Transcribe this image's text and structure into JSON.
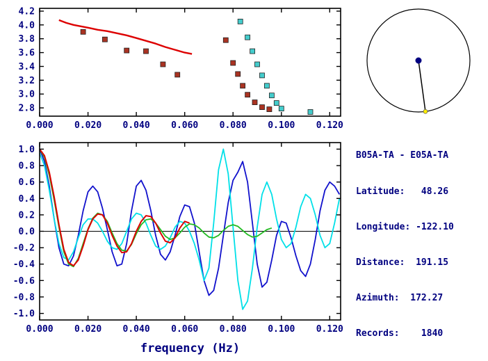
{
  "info_panel": {
    "station_pair": "B05A-TA - E05A-TA",
    "rows": [
      "Latitude:   48.26",
      "Longitude: -122.10",
      "Distance:  191.15",
      "Azimuth:  172.27",
      "Records:    1840"
    ]
  },
  "azimuth_indicator": {
    "azimuth_deg": 172.27,
    "circle_color": "#000000",
    "line_color": "#000000",
    "center_dot_color": "#000080",
    "end_dot_color": "#ffee00"
  },
  "colors": {
    "axis_text": "#000080",
    "frame": "#000000"
  },
  "chart_data": [
    {
      "type": "scatter",
      "title": "",
      "xlabel": "",
      "ylabel": "",
      "xlim": [
        0.0,
        0.1245
      ],
      "ylim": [
        2.68,
        4.24
      ],
      "xticks": [
        0.0,
        0.02,
        0.04,
        0.06,
        0.08,
        0.1,
        0.12
      ],
      "yticks": [
        2.8,
        3.0,
        3.2,
        3.4,
        3.6,
        3.8,
        4.0,
        4.2
      ],
      "xtick_decimals": 3,
      "ytick_decimals": 1,
      "zero_line": false,
      "series": [
        {
          "name": "reference-dispersion-curve",
          "type": "line",
          "color": "#dd0000",
          "width": 2.4,
          "points": [
            [
              0.008,
              4.07
            ],
            [
              0.011,
              4.03
            ],
            [
              0.014,
              4.0
            ],
            [
              0.017,
              3.98
            ],
            [
              0.02,
              3.96
            ],
            [
              0.024,
              3.93
            ],
            [
              0.028,
              3.91
            ],
            [
              0.032,
              3.88
            ],
            [
              0.036,
              3.85
            ],
            [
              0.04,
              3.81
            ],
            [
              0.044,
              3.77
            ],
            [
              0.048,
              3.73
            ],
            [
              0.052,
              3.68
            ],
            [
              0.056,
              3.64
            ],
            [
              0.06,
              3.6
            ],
            [
              0.063,
              3.58
            ]
          ]
        },
        {
          "name": "measured-dispersion-red-markers",
          "type": "markers",
          "color": "#aa3322",
          "points": [
            [
              0.018,
              3.9
            ],
            [
              0.027,
              3.79
            ],
            [
              0.036,
              3.63
            ],
            [
              0.044,
              3.62
            ],
            [
              0.051,
              3.43
            ],
            [
              0.057,
              3.28
            ],
            [
              0.077,
              3.78
            ],
            [
              0.08,
              3.45
            ],
            [
              0.082,
              3.29
            ],
            [
              0.084,
              3.12
            ],
            [
              0.086,
              2.99
            ],
            [
              0.089,
              2.88
            ],
            [
              0.092,
              2.81
            ],
            [
              0.095,
              2.78
            ]
          ]
        },
        {
          "name": "measured-dispersion-cyan-markers",
          "type": "markers",
          "color": "#44cccc",
          "points": [
            [
              0.083,
              4.05
            ],
            [
              0.086,
              3.82
            ],
            [
              0.088,
              3.62
            ],
            [
              0.09,
              3.43
            ],
            [
              0.092,
              3.27
            ],
            [
              0.094,
              3.12
            ],
            [
              0.096,
              2.98
            ],
            [
              0.098,
              2.87
            ],
            [
              0.1,
              2.79
            ],
            [
              0.112,
              2.74
            ]
          ]
        }
      ]
    },
    {
      "type": "line",
      "title": "",
      "xlabel": "frequency (Hz)",
      "ylabel": "",
      "xlim": [
        0.0,
        0.1245
      ],
      "ylim": [
        -1.08,
        1.08
      ],
      "xticks": [
        0.0,
        0.02,
        0.04,
        0.06,
        0.08,
        0.1,
        0.12
      ],
      "yticks": [
        -1.0,
        -0.8,
        -0.6,
        -0.4,
        -0.2,
        0.0,
        0.2,
        0.4,
        0.6,
        0.8,
        1.0
      ],
      "xtick_decimals": 3,
      "ytick_decimals": 1,
      "zero_line": true,
      "series": [
        {
          "name": "blue-waveform",
          "type": "line",
          "color": "#1111cc",
          "width": 1.8,
          "x_start": 0.0,
          "x_step": 0.002,
          "y": [
            1.0,
            0.85,
            0.55,
            0.15,
            -0.2,
            -0.4,
            -0.42,
            -0.3,
            -0.05,
            0.25,
            0.48,
            0.55,
            0.48,
            0.28,
            0.02,
            -0.25,
            -0.42,
            -0.4,
            -0.15,
            0.25,
            0.55,
            0.62,
            0.5,
            0.25,
            -0.05,
            -0.28,
            -0.35,
            -0.25,
            -0.05,
            0.18,
            0.32,
            0.3,
            0.1,
            -0.25,
            -0.6,
            -0.78,
            -0.72,
            -0.45,
            -0.05,
            0.35,
            0.62,
            0.72,
            0.85,
            0.6,
            0.1,
            -0.4,
            -0.68,
            -0.62,
            -0.35,
            -0.05,
            0.12,
            0.1,
            -0.08,
            -0.3,
            -0.48,
            -0.55,
            -0.4,
            -0.1,
            0.25,
            0.5,
            0.6,
            0.55,
            0.45
          ]
        },
        {
          "name": "cyan-waveform",
          "type": "line",
          "color": "#00e0e8",
          "width": 1.8,
          "x_start": 0.0,
          "x_step": 0.002,
          "y": [
            0.95,
            0.8,
            0.5,
            0.15,
            -0.15,
            -0.32,
            -0.35,
            -0.25,
            -0.08,
            0.08,
            0.15,
            0.15,
            0.1,
            0.0,
            -0.12,
            -0.2,
            -0.22,
            -0.15,
            0.0,
            0.15,
            0.22,
            0.2,
            0.1,
            -0.05,
            -0.18,
            -0.22,
            -0.18,
            -0.08,
            0.05,
            0.12,
            0.1,
            0.0,
            -0.15,
            -0.35,
            -0.6,
            -0.45,
            0.1,
            0.75,
            1.0,
            0.7,
            0.05,
            -0.6,
            -0.95,
            -0.85,
            -0.45,
            0.05,
            0.45,
            0.6,
            0.45,
            0.15,
            -0.1,
            -0.2,
            -0.15,
            0.05,
            0.3,
            0.45,
            0.4,
            0.2,
            -0.05,
            -0.2,
            -0.15,
            0.1,
            0.4
          ]
        },
        {
          "name": "green-waveform",
          "type": "line",
          "color": "#22bb22",
          "width": 1.8,
          "x_start": 0.0,
          "x_step": 0.002,
          "y": [
            1.0,
            0.9,
            0.68,
            0.38,
            0.05,
            -0.25,
            -0.4,
            -0.43,
            -0.33,
            -0.15,
            0.03,
            0.16,
            0.22,
            0.2,
            0.12,
            -0.02,
            -0.15,
            -0.23,
            -0.24,
            -0.16,
            -0.03,
            0.08,
            0.14,
            0.15,
            0.1,
            0.02,
            -0.06,
            -0.1,
            -0.08,
            -0.02,
            0.05,
            0.09,
            0.08,
            0.04,
            -0.02,
            -0.07,
            -0.08,
            -0.05,
            0.01,
            0.06,
            0.08,
            0.06,
            0.01,
            -0.04,
            -0.07,
            -0.06,
            -0.02,
            0.02,
            0.04
          ]
        },
        {
          "name": "red-waveform",
          "type": "line",
          "color": "#dd0000",
          "width": 2.0,
          "x_start": 0.0,
          "x_step": 0.002,
          "y": [
            1.0,
            0.92,
            0.72,
            0.42,
            0.08,
            -0.22,
            -0.38,
            -0.42,
            -0.35,
            -0.18,
            0.02,
            0.15,
            0.21,
            0.2,
            0.1,
            -0.05,
            -0.18,
            -0.26,
            -0.25,
            -0.15,
            0.0,
            0.12,
            0.19,
            0.18,
            0.1,
            -0.02,
            -0.12,
            -0.14,
            -0.08,
            0.04,
            0.12,
            0.1
          ]
        }
      ]
    }
  ]
}
